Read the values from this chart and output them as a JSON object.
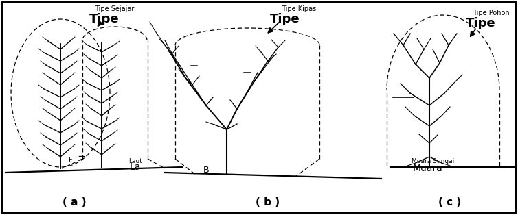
{
  "fig_width": 7.54,
  "fig_height": 3.14,
  "bg": "#ffffff",
  "labels": {
    "a_label": "( a )",
    "b_label": "( b )",
    "c_label": "( c )",
    "a_type_small": "Tipe Sejajar",
    "a_type_large": "Tipe",
    "b_type_small": "Tipe Kipas",
    "b_type_large": "Tipe",
    "c_type_small": "Tipe Pohon",
    "c_type_large": "Tipe",
    "a_laut_small": "Laut",
    "a_laut_large": "La",
    "a_f": "F",
    "b_b": "B",
    "c_muara_small": "Muara Sungai",
    "c_muara_large": "Muara"
  }
}
